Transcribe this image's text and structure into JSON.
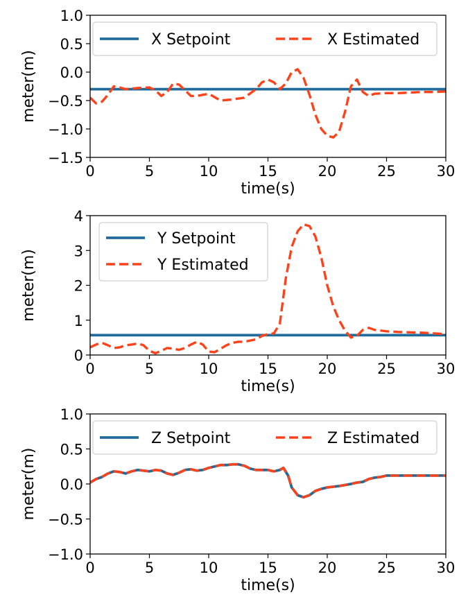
{
  "colors": {
    "setpoint": "#1f6b9c",
    "estimated": "#ff4219"
  },
  "chart_data": [
    {
      "type": "line",
      "xlabel": "time(s)",
      "ylabel": "meter(m)",
      "xlim": [
        0,
        30
      ],
      "ylim": [
        -1.5,
        1.0
      ],
      "xticks": [
        "0",
        "5",
        "10",
        "15",
        "20",
        "25",
        "30"
      ],
      "yticks": [
        "1.0",
        "0.5",
        "0.0",
        "−0.5",
        "−1.0",
        "−1.5"
      ],
      "legend_position": "top",
      "series": [
        {
          "name": "X Setpoint",
          "style": "solid",
          "x": [
            0,
            30
          ],
          "y": [
            -0.3,
            -0.3
          ]
        },
        {
          "name": "X Estimated",
          "style": "dashed",
          "x": [
            0,
            0.5,
            1,
            1.5,
            2,
            2.5,
            3,
            4,
            5,
            5.5,
            6,
            6.5,
            7,
            7.5,
            8,
            8.5,
            9,
            10,
            11,
            12,
            13,
            14,
            14.5,
            15,
            15.5,
            16,
            16.5,
            17,
            17.5,
            18,
            18.5,
            19,
            19.5,
            20,
            20.5,
            21,
            21.5,
            22,
            22.5,
            23,
            23.5,
            24,
            25,
            26,
            27,
            28,
            29,
            30
          ],
          "y": [
            -0.45,
            -0.55,
            -0.52,
            -0.4,
            -0.25,
            -0.27,
            -0.3,
            -0.28,
            -0.27,
            -0.32,
            -0.42,
            -0.35,
            -0.2,
            -0.22,
            -0.32,
            -0.42,
            -0.42,
            -0.38,
            -0.5,
            -0.48,
            -0.45,
            -0.3,
            -0.18,
            -0.13,
            -0.18,
            -0.3,
            -0.2,
            0.0,
            0.05,
            -0.1,
            -0.4,
            -0.75,
            -1.0,
            -1.12,
            -1.15,
            -1.05,
            -0.7,
            -0.25,
            -0.13,
            -0.35,
            -0.42,
            -0.38,
            -0.37,
            -0.37,
            -0.36,
            -0.35,
            -0.35,
            -0.34
          ]
        }
      ]
    },
    {
      "type": "line",
      "xlabel": "time(s)",
      "ylabel": "meter(m)",
      "xlim": [
        0,
        30
      ],
      "ylim": [
        0,
        4
      ],
      "xticks": [
        "0",
        "5",
        "10",
        "15",
        "20",
        "25",
        "30"
      ],
      "yticks": [
        "4",
        "3",
        "2",
        "1",
        "0"
      ],
      "legend_position": "top-left",
      "series": [
        {
          "name": "Y Setpoint",
          "style": "solid",
          "x": [
            0,
            30
          ],
          "y": [
            0.57,
            0.57
          ]
        },
        {
          "name": "Y Estimated",
          "style": "dashed",
          "x": [
            0,
            0.5,
            1,
            1.5,
            2,
            2.5,
            3,
            3.5,
            4,
            4.5,
            5,
            5.5,
            6,
            6.5,
            7,
            7.5,
            8,
            8.5,
            9,
            9.5,
            10,
            10.5,
            11,
            11.5,
            12,
            12.5,
            13,
            14,
            14.5,
            15,
            15.5,
            16,
            16.5,
            17,
            17.5,
            18,
            18.5,
            19,
            19.5,
            20,
            20.5,
            21,
            21.5,
            22,
            22.5,
            23,
            23.5,
            24,
            25,
            26,
            27,
            28,
            29,
            30
          ],
          "y": [
            0.22,
            0.3,
            0.35,
            0.28,
            0.2,
            0.22,
            0.28,
            0.3,
            0.33,
            0.28,
            0.12,
            0.05,
            0.12,
            0.2,
            0.18,
            0.15,
            0.2,
            0.3,
            0.38,
            0.3,
            0.1,
            0.08,
            0.18,
            0.28,
            0.35,
            0.38,
            0.38,
            0.45,
            0.55,
            0.6,
            0.62,
            0.9,
            2.2,
            3.1,
            3.55,
            3.75,
            3.7,
            3.4,
            2.8,
            2.0,
            1.4,
            1.0,
            0.7,
            0.5,
            0.55,
            0.72,
            0.78,
            0.72,
            0.68,
            0.66,
            0.65,
            0.64,
            0.62,
            0.6
          ]
        }
      ]
    },
    {
      "type": "line",
      "xlabel": "time(s)",
      "ylabel": "meter(m)",
      "xlim": [
        0,
        30
      ],
      "ylim": [
        -1.0,
        1.0
      ],
      "xticks": [
        "0",
        "5",
        "10",
        "15",
        "20",
        "25",
        "30"
      ],
      "yticks": [
        "1.0",
        "0.5",
        "0.0",
        "−0.5",
        "−1.0"
      ],
      "legend_position": "top",
      "series": [
        {
          "name": "Z Setpoint",
          "style": "solid",
          "x": [
            0,
            0.5,
            1,
            1.5,
            2,
            2.5,
            3,
            3.5,
            4,
            4.5,
            5,
            5.5,
            6,
            6.5,
            7,
            7.5,
            8,
            8.5,
            9,
            9.5,
            10,
            10.5,
            11,
            11.5,
            12,
            12.5,
            13,
            13.5,
            14,
            14.5,
            15,
            15.5,
            16,
            16.3,
            16.7,
            17,
            17.5,
            18,
            18.5,
            19,
            19.5,
            20,
            21,
            22,
            22.5,
            23,
            23.5,
            24,
            24.5,
            25,
            26,
            27,
            28,
            29,
            30
          ],
          "y": [
            0.02,
            0.07,
            0.1,
            0.15,
            0.18,
            0.17,
            0.15,
            0.18,
            0.2,
            0.19,
            0.18,
            0.2,
            0.19,
            0.15,
            0.13,
            0.16,
            0.2,
            0.21,
            0.19,
            0.2,
            0.23,
            0.25,
            0.27,
            0.27,
            0.28,
            0.28,
            0.26,
            0.22,
            0.2,
            0.2,
            0.2,
            0.18,
            0.2,
            0.23,
            0.12,
            -0.05,
            -0.16,
            -0.19,
            -0.16,
            -0.1,
            -0.07,
            -0.05,
            -0.03,
            0.0,
            0.02,
            0.03,
            0.07,
            0.09,
            0.1,
            0.12,
            0.12,
            0.12,
            0.12,
            0.12,
            0.12
          ]
        },
        {
          "name": "Z Estimated",
          "style": "dashed",
          "x": [
            0,
            0.5,
            1,
            1.5,
            2,
            2.5,
            3,
            3.5,
            4,
            4.5,
            5,
            5.5,
            6,
            6.5,
            7,
            7.5,
            8,
            8.5,
            9,
            9.5,
            10,
            10.5,
            11,
            11.5,
            12,
            12.5,
            13,
            13.5,
            14,
            14.5,
            15,
            15.5,
            16,
            16.3,
            16.7,
            17,
            17.5,
            18,
            18.5,
            19,
            19.5,
            20,
            21,
            22,
            22.5,
            23,
            23.5,
            24,
            24.5,
            25,
            26,
            27,
            28,
            29,
            30
          ],
          "y": [
            0.02,
            0.07,
            0.1,
            0.15,
            0.18,
            0.17,
            0.15,
            0.18,
            0.2,
            0.19,
            0.18,
            0.2,
            0.19,
            0.15,
            0.13,
            0.16,
            0.2,
            0.21,
            0.19,
            0.2,
            0.23,
            0.25,
            0.27,
            0.27,
            0.28,
            0.28,
            0.26,
            0.22,
            0.2,
            0.2,
            0.2,
            0.18,
            0.2,
            0.23,
            0.12,
            -0.05,
            -0.16,
            -0.19,
            -0.16,
            -0.1,
            -0.07,
            -0.05,
            -0.03,
            0.0,
            0.02,
            0.03,
            0.07,
            0.09,
            0.1,
            0.12,
            0.12,
            0.12,
            0.12,
            0.12,
            0.12
          ]
        }
      ]
    }
  ]
}
